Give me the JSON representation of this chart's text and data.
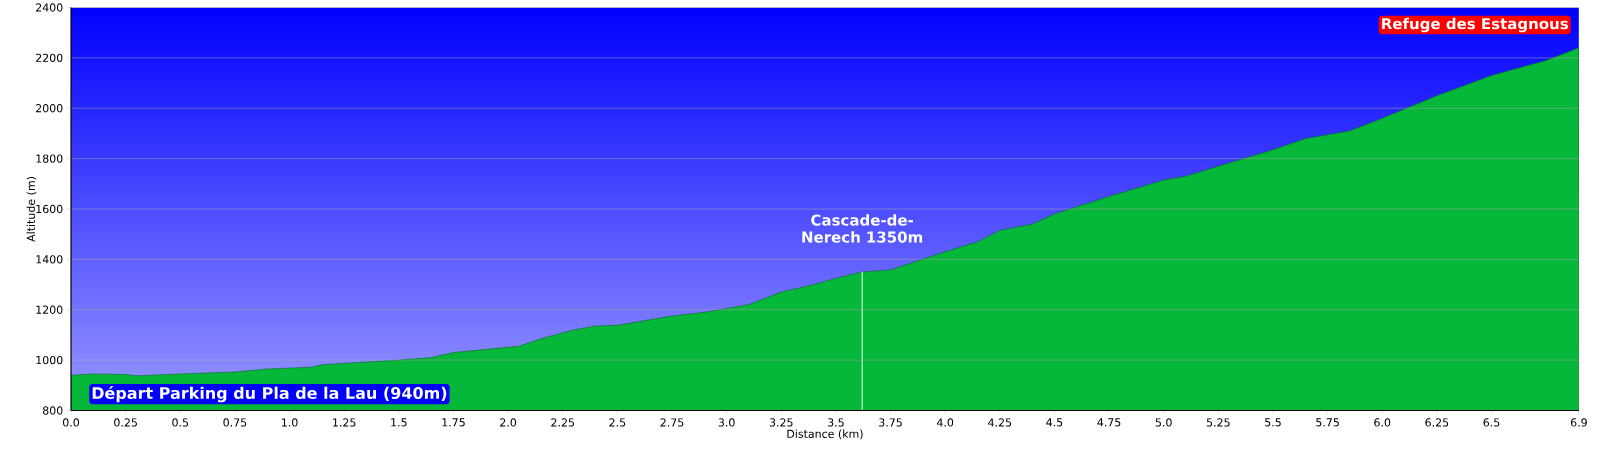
{
  "chart_data": {
    "type": "area",
    "xlabel": "Distance   (km)",
    "ylabel": "Altitude (m)",
    "x": [
      0,
      0.1,
      0.25,
      0.3,
      0.5,
      0.75,
      0.9,
      1.1,
      1.15,
      1.5,
      1.65,
      1.75,
      2.05,
      2.15,
      2.3,
      2.4,
      2.5,
      2.75,
      2.9,
      3.0,
      3.1,
      3.25,
      3.4,
      3.5,
      3.62,
      3.75,
      4.0,
      4.15,
      4.25,
      4.4,
      4.5,
      4.75,
      5.0,
      5.1,
      5.25,
      5.5,
      5.65,
      5.85,
      6.0,
      6.25,
      6.5,
      6.75,
      6.9
    ],
    "values": [
      940,
      945,
      943,
      938,
      945,
      953,
      965,
      972,
      982,
      1000,
      1010,
      1030,
      1055,
      1085,
      1120,
      1135,
      1138,
      1175,
      1190,
      1205,
      1220,
      1270,
      1300,
      1325,
      1350,
      1358,
      1430,
      1470,
      1515,
      1540,
      1580,
      1650,
      1715,
      1730,
      1770,
      1835,
      1880,
      1910,
      1960,
      2050,
      2130,
      2190,
      2240
    ],
    "color": "#06b83a",
    "xlim": [
      0,
      6.9
    ],
    "ylim": [
      800,
      2400
    ],
    "xticks": [
      {
        "value": 0,
        "label": "0.0"
      },
      0.25,
      0.5,
      0.75,
      {
        "value": 1,
        "label": "1.0"
      },
      1.25,
      1.5,
      1.75,
      {
        "value": 2,
        "label": "2.0"
      },
      2.25,
      2.5,
      2.75,
      {
        "value": 3,
        "label": "3.0"
      },
      3.25,
      3.5,
      3.75,
      {
        "value": 4,
        "label": "4.0"
      },
      4.25,
      4.5,
      4.75,
      {
        "value": 5,
        "label": "5.0"
      },
      5.25,
      5.5,
      5.75,
      {
        "value": 6,
        "label": "6.0"
      },
      6.25,
      6.5,
      6.9
    ],
    "yticks": [
      800,
      1000,
      1200,
      1400,
      1600,
      1800,
      2000,
      2200,
      2400
    ],
    "grid": "y",
    "annotations": [
      "Départ Parking du Pla de la Lau (940m)",
      {
        "text": "Cascade-de-Nerech 1350m",
        "x": 3.62,
        "y": 1350
      },
      "Refuge des Estagnous"
    ]
  }
}
